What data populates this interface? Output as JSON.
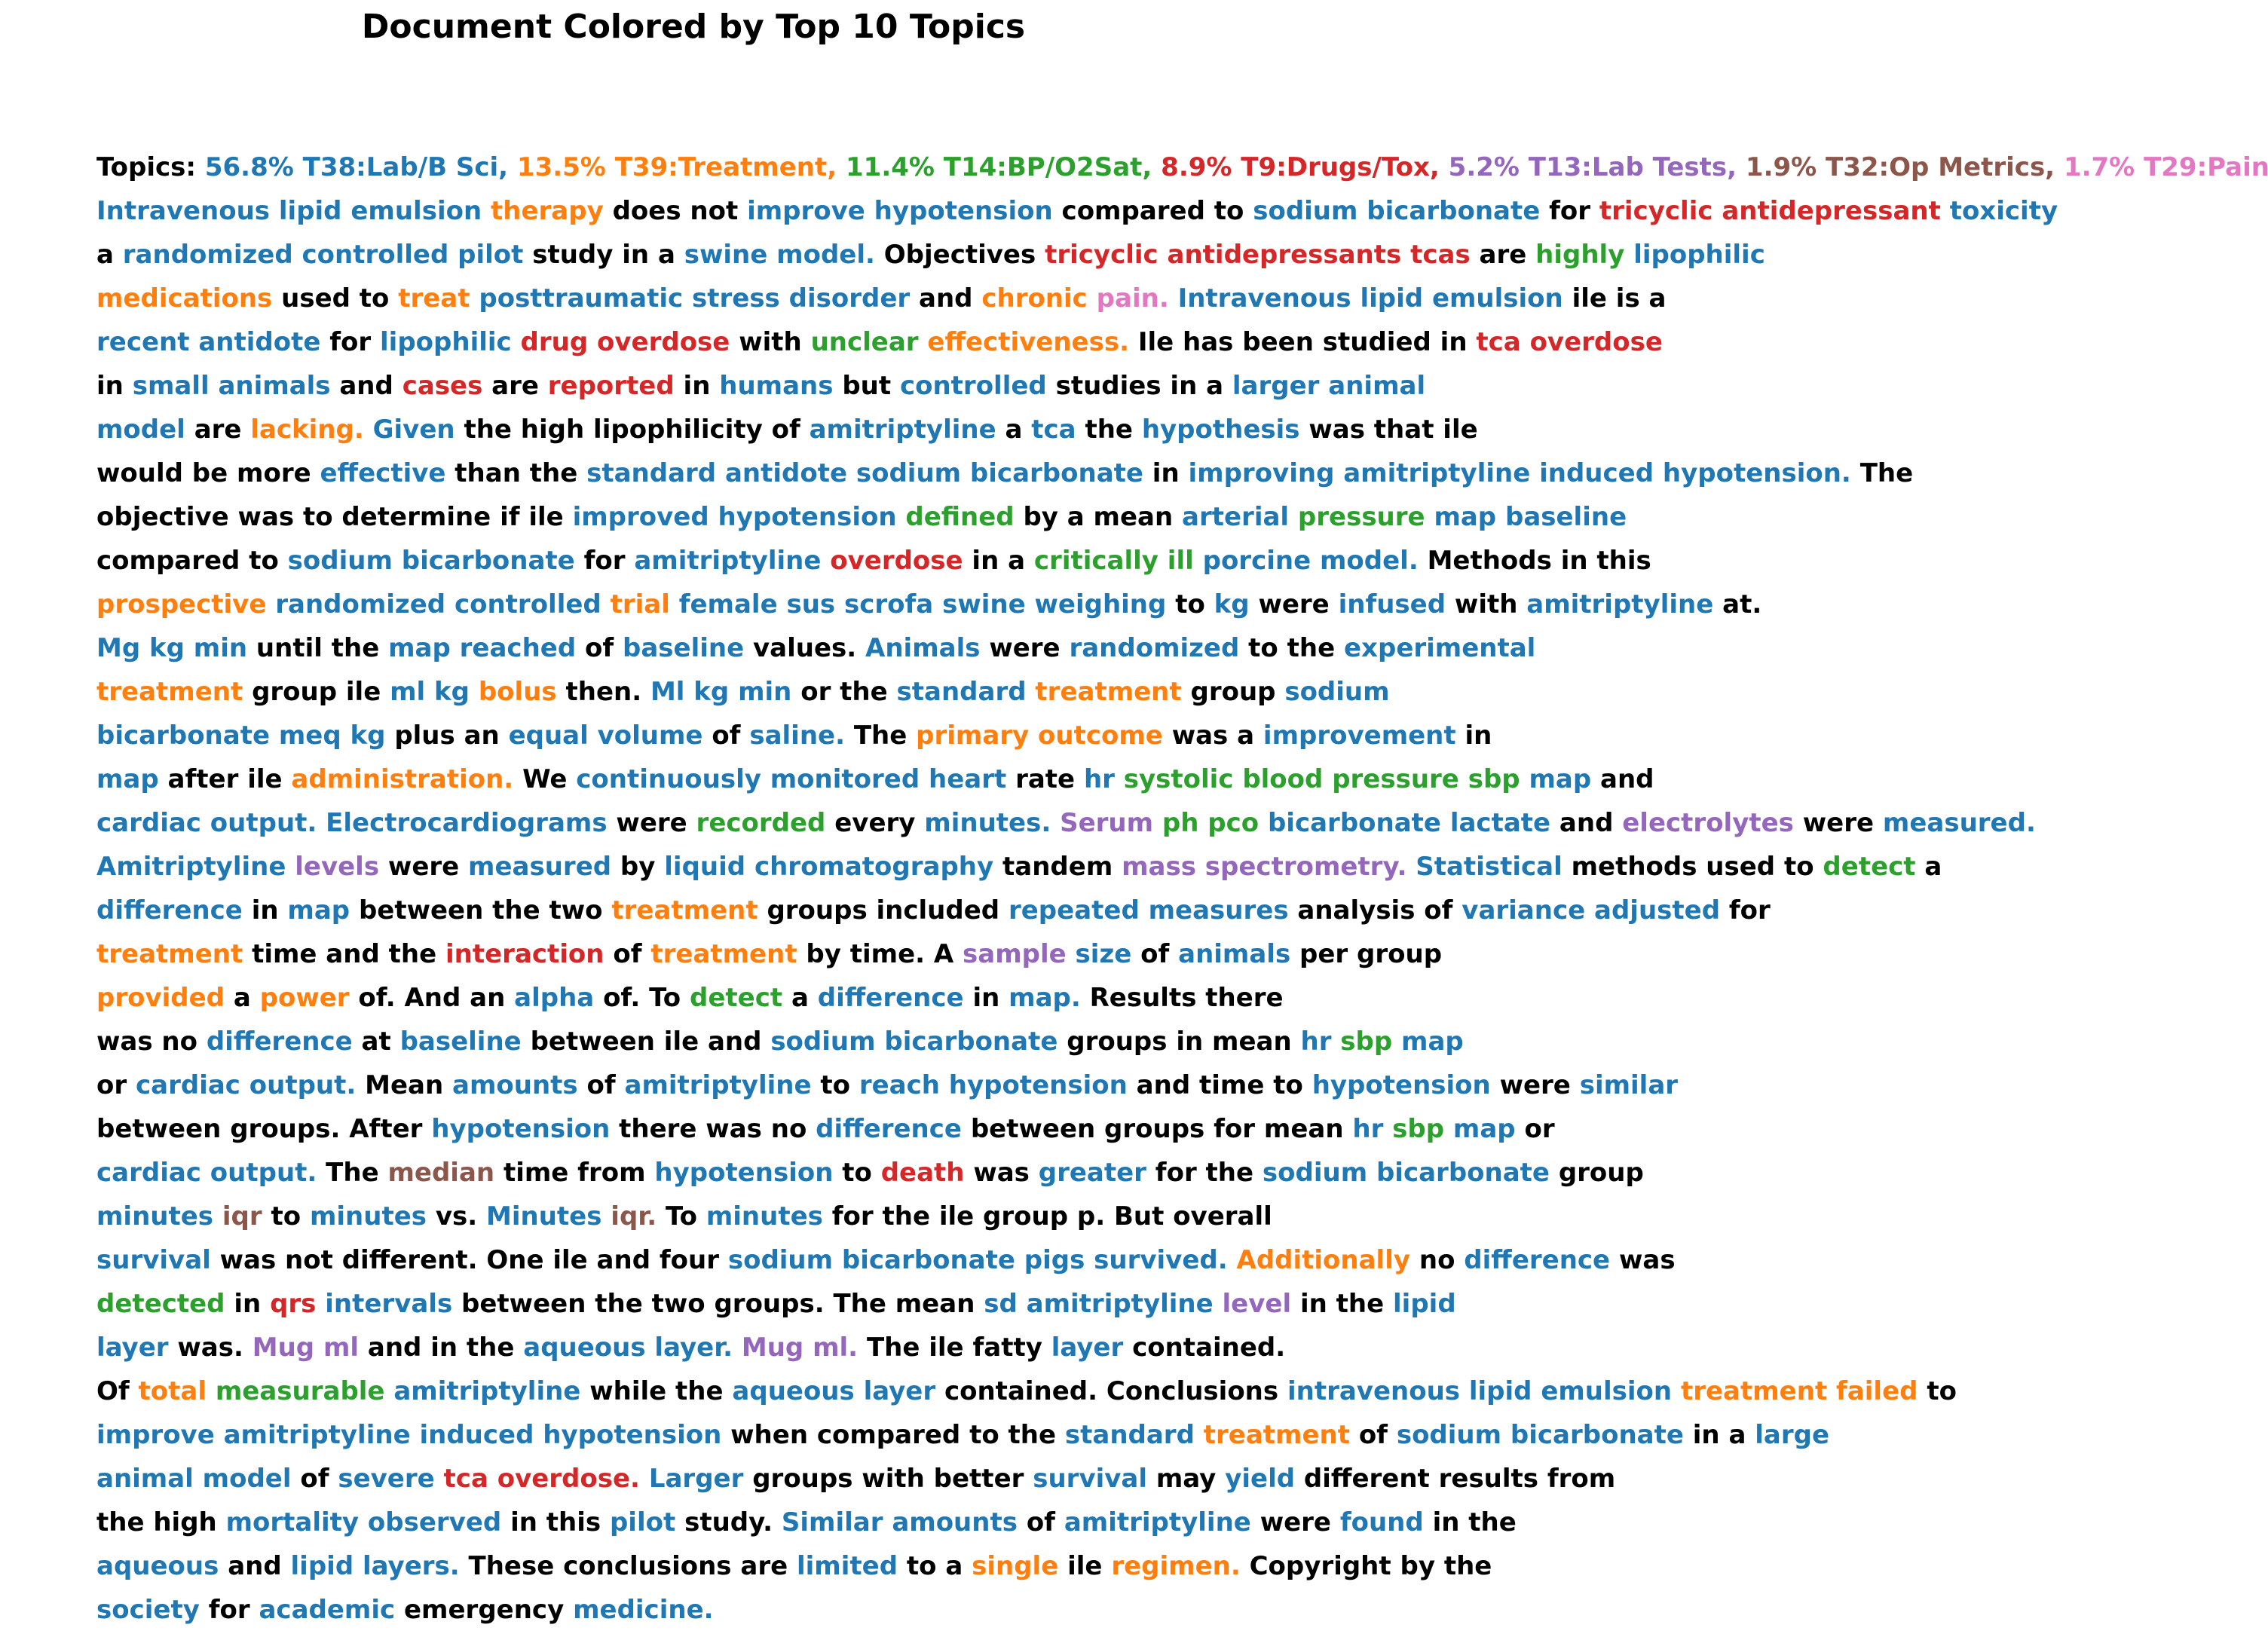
{
  "title": "Document Colored by Top 10 Topics",
  "palette": {
    "k": "#000000",
    "blue": "#1f77b4",
    "orange": "#ff7f0e",
    "green": "#2ca02c",
    "red": "#d62728",
    "purple": "#9467bd",
    "brown": "#8c564b",
    "pink": "#e377c2"
  },
  "legend": [
    {
      "topic": "T38:Lab/B Sci",
      "share": "56.8%",
      "color": "#1f77b4"
    },
    {
      "topic": "T39:Treatment",
      "share": "13.5%",
      "color": "#ff7f0e"
    },
    {
      "topic": "T14:BP/O2Sat",
      "share": "11.4%",
      "color": "#2ca02c"
    },
    {
      "topic": "T9:Drugs/Tox",
      "share": "8.9%",
      "color": "#d62728"
    },
    {
      "topic": "T13:Lab Tests",
      "share": "5.2%",
      "color": "#9467bd"
    },
    {
      "topic": "T32:Op Metrics",
      "share": "1.9%",
      "color": "#8c564b"
    },
    {
      "topic": "T29:Pain",
      "share": "1.7%",
      "color": "#e377c2"
    }
  ],
  "lines": [
    [
      [
        "k",
        "Topics: "
      ],
      [
        "blue",
        "56.8% T38:Lab/B Sci, "
      ],
      [
        "orange",
        "13.5% T39:Treatment, "
      ],
      [
        "green",
        "11.4% T14:BP/O2Sat, "
      ],
      [
        "red",
        "8.9% T9:Drugs/Tox, "
      ],
      [
        "purple",
        "5.2% T13:Lab Tests, "
      ],
      [
        "brown",
        "1.9% T32:Op Metrics, "
      ],
      [
        "pink",
        "1.7% T29:Pain,"
      ]
    ],
    [
      [
        "blue",
        "Intravenous lipid emulsion "
      ],
      [
        "orange",
        "therapy "
      ],
      [
        "k",
        "does not "
      ],
      [
        "blue",
        "improve hypotension "
      ],
      [
        "k",
        "compared to "
      ],
      [
        "blue",
        "sodium bicarbonate "
      ],
      [
        "k",
        "for "
      ],
      [
        "red",
        "tricyclic antidepressant "
      ],
      [
        "blue",
        "toxicity"
      ]
    ],
    [
      [
        "k",
        "a "
      ],
      [
        "blue",
        "randomized controlled pilot "
      ],
      [
        "k",
        "study in a "
      ],
      [
        "blue",
        "swine model. "
      ],
      [
        "k",
        "Objectives "
      ],
      [
        "red",
        "tricyclic antidepressants tcas "
      ],
      [
        "k",
        "are "
      ],
      [
        "green",
        "highly "
      ],
      [
        "blue",
        "lipophilic"
      ]
    ],
    [
      [
        "orange",
        "medications "
      ],
      [
        "k",
        "used to "
      ],
      [
        "orange",
        "treat "
      ],
      [
        "blue",
        "posttraumatic stress disorder "
      ],
      [
        "k",
        "and "
      ],
      [
        "orange",
        "chronic "
      ],
      [
        "pink",
        "pain. "
      ],
      [
        "blue",
        "Intravenous lipid emulsion "
      ],
      [
        "k",
        "ile is a"
      ]
    ],
    [
      [
        "blue",
        "recent antidote "
      ],
      [
        "k",
        "for "
      ],
      [
        "blue",
        "lipophilic "
      ],
      [
        "red",
        "drug overdose "
      ],
      [
        "k",
        "with "
      ],
      [
        "green",
        "unclear "
      ],
      [
        "orange",
        "effectiveness. "
      ],
      [
        "k",
        "Ile has been studied in "
      ],
      [
        "red",
        "tca overdose"
      ]
    ],
    [
      [
        "k",
        "in "
      ],
      [
        "blue",
        "small animals "
      ],
      [
        "k",
        "and "
      ],
      [
        "red",
        "cases "
      ],
      [
        "k",
        "are "
      ],
      [
        "red",
        "reported "
      ],
      [
        "k",
        "in "
      ],
      [
        "blue",
        "humans "
      ],
      [
        "k",
        "but "
      ],
      [
        "blue",
        "controlled "
      ],
      [
        "k",
        "studies in a "
      ],
      [
        "blue",
        "larger animal"
      ]
    ],
    [
      [
        "blue",
        "model "
      ],
      [
        "k",
        "are "
      ],
      [
        "orange",
        "lacking. "
      ],
      [
        "blue",
        "Given "
      ],
      [
        "k",
        "the high lipophilicity of "
      ],
      [
        "blue",
        "amitriptyline "
      ],
      [
        "k",
        "a "
      ],
      [
        "blue",
        "tca "
      ],
      [
        "k",
        "the "
      ],
      [
        "blue",
        "hypothesis "
      ],
      [
        "k",
        "was that ile"
      ]
    ],
    [
      [
        "k",
        "would be more "
      ],
      [
        "blue",
        "effective "
      ],
      [
        "k",
        "than the "
      ],
      [
        "blue",
        "standard antidote sodium bicarbonate "
      ],
      [
        "k",
        "in "
      ],
      [
        "blue",
        "improving amitriptyline induced hypotension. "
      ],
      [
        "k",
        "The"
      ]
    ],
    [
      [
        "k",
        "objective was to determine if ile "
      ],
      [
        "blue",
        "improved hypotension "
      ],
      [
        "green",
        "defined "
      ],
      [
        "k",
        "by a mean "
      ],
      [
        "blue",
        "arterial "
      ],
      [
        "green",
        "pressure "
      ],
      [
        "blue",
        "map baseline"
      ]
    ],
    [
      [
        "k",
        "compared to "
      ],
      [
        "blue",
        "sodium bicarbonate "
      ],
      [
        "k",
        "for "
      ],
      [
        "blue",
        "amitriptyline "
      ],
      [
        "red",
        "overdose "
      ],
      [
        "k",
        "in a "
      ],
      [
        "green",
        "critically ill "
      ],
      [
        "blue",
        "porcine model. "
      ],
      [
        "k",
        "Methods in this"
      ]
    ],
    [
      [
        "orange",
        "prospective "
      ],
      [
        "blue",
        "randomized controlled "
      ],
      [
        "orange",
        "trial "
      ],
      [
        "blue",
        "female sus scrofa swine weighing "
      ],
      [
        "k",
        "to "
      ],
      [
        "blue",
        "kg "
      ],
      [
        "k",
        "were "
      ],
      [
        "blue",
        "infused "
      ],
      [
        "k",
        "with "
      ],
      [
        "blue",
        "amitriptyline "
      ],
      [
        "k",
        "at."
      ]
    ],
    [
      [
        "blue",
        "Mg kg min "
      ],
      [
        "k",
        "until the "
      ],
      [
        "blue",
        "map reached "
      ],
      [
        "k",
        "of "
      ],
      [
        "blue",
        "baseline "
      ],
      [
        "k",
        "values. "
      ],
      [
        "blue",
        "Animals "
      ],
      [
        "k",
        "were "
      ],
      [
        "blue",
        "randomized "
      ],
      [
        "k",
        "to the "
      ],
      [
        "blue",
        "experimental"
      ]
    ],
    [
      [
        "orange",
        "treatment "
      ],
      [
        "k",
        "group ile "
      ],
      [
        "blue",
        "ml kg "
      ],
      [
        "orange",
        "bolus "
      ],
      [
        "k",
        "then. "
      ],
      [
        "blue",
        "Ml kg min "
      ],
      [
        "k",
        "or the "
      ],
      [
        "blue",
        "standard "
      ],
      [
        "orange",
        "treatment "
      ],
      [
        "k",
        "group "
      ],
      [
        "blue",
        "sodium"
      ]
    ],
    [
      [
        "blue",
        "bicarbonate meq kg "
      ],
      [
        "k",
        "plus an "
      ],
      [
        "blue",
        "equal volume "
      ],
      [
        "k",
        "of "
      ],
      [
        "blue",
        "saline. "
      ],
      [
        "k",
        "The "
      ],
      [
        "orange",
        "primary outcome "
      ],
      [
        "k",
        "was a "
      ],
      [
        "blue",
        "improvement "
      ],
      [
        "k",
        "in"
      ]
    ],
    [
      [
        "blue",
        "map "
      ],
      [
        "k",
        "after ile "
      ],
      [
        "orange",
        "administration. "
      ],
      [
        "k",
        "We "
      ],
      [
        "blue",
        "continuously monitored heart "
      ],
      [
        "k",
        "rate "
      ],
      [
        "blue",
        "hr "
      ],
      [
        "green",
        "systolic blood pressure sbp "
      ],
      [
        "blue",
        "map "
      ],
      [
        "k",
        "and"
      ]
    ],
    [
      [
        "blue",
        "cardiac output. Electrocardiograms "
      ],
      [
        "k",
        "were "
      ],
      [
        "green",
        "recorded "
      ],
      [
        "k",
        "every "
      ],
      [
        "blue",
        "minutes. "
      ],
      [
        "purple",
        "Serum "
      ],
      [
        "green",
        "ph pco "
      ],
      [
        "blue",
        "bicarbonate lactate "
      ],
      [
        "k",
        "and "
      ],
      [
        "purple",
        "electrolytes "
      ],
      [
        "k",
        "were "
      ],
      [
        "blue",
        "measured."
      ]
    ],
    [
      [
        "blue",
        "Amitriptyline "
      ],
      [
        "purple",
        "levels "
      ],
      [
        "k",
        "were "
      ],
      [
        "blue",
        "measured "
      ],
      [
        "k",
        "by "
      ],
      [
        "blue",
        "liquid chromatography "
      ],
      [
        "k",
        "tandem "
      ],
      [
        "purple",
        "mass spectrometry. "
      ],
      [
        "blue",
        "Statistical "
      ],
      [
        "k",
        "methods used to "
      ],
      [
        "green",
        "detect "
      ],
      [
        "k",
        "a"
      ]
    ],
    [
      [
        "blue",
        "difference "
      ],
      [
        "k",
        "in "
      ],
      [
        "blue",
        "map "
      ],
      [
        "k",
        "between the two "
      ],
      [
        "orange",
        "treatment "
      ],
      [
        "k",
        "groups included "
      ],
      [
        "blue",
        "repeated measures "
      ],
      [
        "k",
        "analysis of "
      ],
      [
        "blue",
        "variance adjusted "
      ],
      [
        "k",
        "for"
      ]
    ],
    [
      [
        "orange",
        "treatment "
      ],
      [
        "k",
        "time and the "
      ],
      [
        "red",
        "interaction "
      ],
      [
        "k",
        "of "
      ],
      [
        "orange",
        "treatment "
      ],
      [
        "k",
        "by time. A "
      ],
      [
        "purple",
        "sample "
      ],
      [
        "blue",
        "size "
      ],
      [
        "k",
        "of "
      ],
      [
        "blue",
        "animals "
      ],
      [
        "k",
        "per group"
      ]
    ],
    [
      [
        "orange",
        "provided "
      ],
      [
        "k",
        "a "
      ],
      [
        "orange",
        "power "
      ],
      [
        "k",
        "of. And an "
      ],
      [
        "blue",
        "alpha "
      ],
      [
        "k",
        "of. To "
      ],
      [
        "green",
        "detect "
      ],
      [
        "k",
        "a "
      ],
      [
        "blue",
        "difference "
      ],
      [
        "k",
        "in "
      ],
      [
        "blue",
        "map. "
      ],
      [
        "k",
        "Results there"
      ]
    ],
    [
      [
        "k",
        "was no "
      ],
      [
        "blue",
        "difference "
      ],
      [
        "k",
        "at "
      ],
      [
        "blue",
        "baseline "
      ],
      [
        "k",
        "between ile and "
      ],
      [
        "blue",
        "sodium bicarbonate "
      ],
      [
        "k",
        "groups in mean "
      ],
      [
        "blue",
        "hr "
      ],
      [
        "green",
        "sbp "
      ],
      [
        "blue",
        "map"
      ]
    ],
    [
      [
        "k",
        "or "
      ],
      [
        "blue",
        "cardiac output. "
      ],
      [
        "k",
        "Mean "
      ],
      [
        "blue",
        "amounts "
      ],
      [
        "k",
        "of "
      ],
      [
        "blue",
        "amitriptyline "
      ],
      [
        "k",
        "to "
      ],
      [
        "blue",
        "reach hypotension "
      ],
      [
        "k",
        "and time to "
      ],
      [
        "blue",
        "hypotension "
      ],
      [
        "k",
        "were "
      ],
      [
        "blue",
        "similar"
      ]
    ],
    [
      [
        "k",
        "between groups. After "
      ],
      [
        "blue",
        "hypotension "
      ],
      [
        "k",
        "there was no "
      ],
      [
        "blue",
        "difference "
      ],
      [
        "k",
        "between groups for mean "
      ],
      [
        "blue",
        "hr "
      ],
      [
        "green",
        "sbp "
      ],
      [
        "blue",
        "map "
      ],
      [
        "k",
        "or"
      ]
    ],
    [
      [
        "blue",
        "cardiac output. "
      ],
      [
        "k",
        "The "
      ],
      [
        "brown",
        "median "
      ],
      [
        "k",
        "time from "
      ],
      [
        "blue",
        "hypotension "
      ],
      [
        "k",
        "to "
      ],
      [
        "red",
        "death "
      ],
      [
        "k",
        "was "
      ],
      [
        "blue",
        "greater "
      ],
      [
        "k",
        "for the "
      ],
      [
        "blue",
        "sodium bicarbonate "
      ],
      [
        "k",
        "group"
      ]
    ],
    [
      [
        "blue",
        "minutes "
      ],
      [
        "brown",
        "iqr "
      ],
      [
        "k",
        "to "
      ],
      [
        "blue",
        "minutes "
      ],
      [
        "k",
        "vs. "
      ],
      [
        "blue",
        "Minutes "
      ],
      [
        "brown",
        "iqr. "
      ],
      [
        "k",
        "To "
      ],
      [
        "blue",
        "minutes "
      ],
      [
        "k",
        "for the ile group p. But overall"
      ]
    ],
    [
      [
        "blue",
        "survival "
      ],
      [
        "k",
        "was not different. One ile and four "
      ],
      [
        "blue",
        "sodium bicarbonate pigs survived. "
      ],
      [
        "orange",
        "Additionally "
      ],
      [
        "k",
        "no "
      ],
      [
        "blue",
        "difference "
      ],
      [
        "k",
        "was"
      ]
    ],
    [
      [
        "green",
        "detected "
      ],
      [
        "k",
        "in "
      ],
      [
        "red",
        "qrs "
      ],
      [
        "blue",
        "intervals "
      ],
      [
        "k",
        "between the two groups. The mean "
      ],
      [
        "blue",
        "sd amitriptyline "
      ],
      [
        "purple",
        "level "
      ],
      [
        "k",
        "in the "
      ],
      [
        "blue",
        "lipid"
      ]
    ],
    [
      [
        "blue",
        "layer "
      ],
      [
        "k",
        "was. "
      ],
      [
        "purple",
        "Mug ml "
      ],
      [
        "k",
        "and in the "
      ],
      [
        "blue",
        "aqueous layer. "
      ],
      [
        "purple",
        "Mug ml. "
      ],
      [
        "k",
        "The ile fatty "
      ],
      [
        "blue",
        "layer "
      ],
      [
        "k",
        "contained."
      ]
    ],
    [
      [
        "k",
        "Of "
      ],
      [
        "orange",
        "total "
      ],
      [
        "green",
        "measurable "
      ],
      [
        "blue",
        "amitriptyline "
      ],
      [
        "k",
        "while the "
      ],
      [
        "blue",
        "aqueous layer "
      ],
      [
        "k",
        "contained. Conclusions "
      ],
      [
        "blue",
        "intravenous lipid emulsion "
      ],
      [
        "orange",
        "treatment failed "
      ],
      [
        "k",
        "to"
      ]
    ],
    [
      [
        "blue",
        "improve amitriptyline induced hypotension "
      ],
      [
        "k",
        "when compared to the "
      ],
      [
        "blue",
        "standard "
      ],
      [
        "orange",
        "treatment "
      ],
      [
        "k",
        "of "
      ],
      [
        "blue",
        "sodium bicarbonate "
      ],
      [
        "k",
        "in a "
      ],
      [
        "blue",
        "large"
      ]
    ],
    [
      [
        "blue",
        "animal model "
      ],
      [
        "k",
        "of "
      ],
      [
        "blue",
        "severe "
      ],
      [
        "red",
        "tca overdose. "
      ],
      [
        "blue",
        "Larger "
      ],
      [
        "k",
        "groups with better "
      ],
      [
        "blue",
        "survival "
      ],
      [
        "k",
        "may "
      ],
      [
        "blue",
        "yield "
      ],
      [
        "k",
        "different results from"
      ]
    ],
    [
      [
        "k",
        "the high "
      ],
      [
        "blue",
        "mortality observed "
      ],
      [
        "k",
        "in this "
      ],
      [
        "blue",
        "pilot "
      ],
      [
        "k",
        "study. "
      ],
      [
        "blue",
        "Similar amounts "
      ],
      [
        "k",
        "of "
      ],
      [
        "blue",
        "amitriptyline "
      ],
      [
        "k",
        "were "
      ],
      [
        "blue",
        "found "
      ],
      [
        "k",
        "in the"
      ]
    ],
    [
      [
        "blue",
        "aqueous "
      ],
      [
        "k",
        "and "
      ],
      [
        "blue",
        "lipid layers. "
      ],
      [
        "k",
        "These conclusions are "
      ],
      [
        "blue",
        "limited "
      ],
      [
        "k",
        "to a "
      ],
      [
        "orange",
        "single "
      ],
      [
        "k",
        "ile "
      ],
      [
        "orange",
        "regimen. "
      ],
      [
        "k",
        "Copyright by the"
      ]
    ],
    [
      [
        "blue",
        "society "
      ],
      [
        "k",
        "for "
      ],
      [
        "blue",
        "academic "
      ],
      [
        "k",
        "emergency "
      ],
      [
        "blue",
        "medicine."
      ]
    ]
  ]
}
